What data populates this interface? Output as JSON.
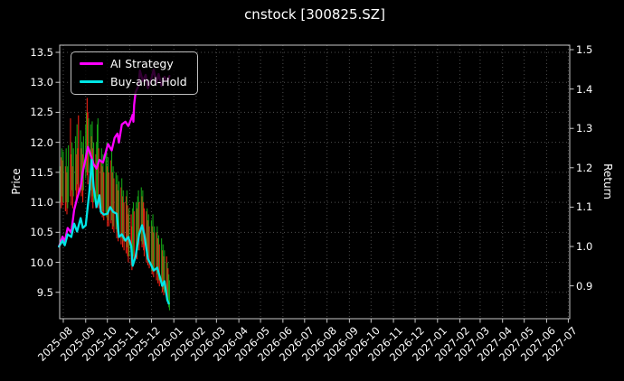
{
  "title": "cnstock [300825.SZ]",
  "left_axis_label": "Price",
  "right_axis_label": "Return",
  "legend": {
    "items": [
      {
        "label": "AI Strategy",
        "color": "#ff00ff"
      },
      {
        "label": "Buy-and-Hold",
        "color": "#00e5e5"
      }
    ]
  },
  "colors": {
    "background": "#000000",
    "text": "#ffffff",
    "plot_border": "#c8c8c8",
    "grid": "#4d4d4d",
    "ai_strategy": "#ff00ff",
    "buy_and_hold": "#00e5e5",
    "candle_up": "#15a015",
    "candle_down": "#ec2115"
  },
  "chart_data": {
    "type": "line",
    "subtypes": [
      "ohlc-range-bars",
      "line",
      "line"
    ],
    "title": "cnstock [300825.SZ]",
    "xlabel": "",
    "grid": {
      "visible": true,
      "style": "dotted"
    },
    "legend_position": "upper-left",
    "x_axis": {
      "epoch": "2025-08-01",
      "range_days": [
        -5,
        701
      ],
      "tick_labels": [
        "2025-08",
        "2025-09",
        "2025-10",
        "2025-11",
        "2025-12",
        "2026-01",
        "2026-02",
        "2026-03",
        "2026-04",
        "2026-05",
        "2026-06",
        "2026-07",
        "2026-08",
        "2026-09",
        "2026-10",
        "2026-11",
        "2026-12",
        "2027-01",
        "2027-02",
        "2027-03",
        "2027-04",
        "2027-05",
        "2027-06",
        "2027-07"
      ],
      "tick_day_offsets": [
        0,
        31,
        61,
        92,
        122,
        153,
        184,
        212,
        243,
        273,
        304,
        334,
        365,
        396,
        426,
        457,
        487,
        518,
        549,
        577,
        608,
        638,
        669,
        699
      ],
      "label_rotation_deg": 45
    },
    "left_axis": {
      "label": "Price",
      "ticks": [
        9.5,
        10.0,
        10.5,
        11.0,
        11.5,
        12.0,
        12.5,
        13.0,
        13.5
      ],
      "range": [
        9.06,
        13.62
      ]
    },
    "right_axis": {
      "label": "Return",
      "ticks": [
        0.9,
        1.0,
        1.1,
        1.2,
        1.3,
        1.4,
        1.5
      ],
      "range": [
        0.8165,
        1.5115
      ]
    },
    "series": [
      {
        "name": "AI Strategy",
        "axis": "right",
        "color": "#ff00ff",
        "points": [
          [
            -6,
            1.0
          ],
          [
            -1,
            1.025
          ],
          [
            2,
            1.012
          ],
          [
            6,
            1.047
          ],
          [
            11,
            1.035
          ],
          [
            15,
            1.093
          ],
          [
            19,
            1.122
          ],
          [
            24,
            1.152
          ],
          [
            27,
            1.19
          ],
          [
            31,
            1.225
          ],
          [
            34,
            1.253
          ],
          [
            37,
            1.237
          ],
          [
            42,
            1.209
          ],
          [
            46,
            1.198
          ],
          [
            50,
            1.22
          ],
          [
            55,
            1.213
          ],
          [
            59,
            1.241
          ],
          [
            62,
            1.26
          ],
          [
            67,
            1.244
          ],
          [
            71,
            1.276
          ],
          [
            75,
            1.287
          ],
          [
            77,
            1.264
          ],
          [
            81,
            1.31
          ],
          [
            86,
            1.317
          ],
          [
            90,
            1.306
          ],
          [
            94,
            1.324
          ],
          [
            96,
            1.335
          ],
          [
            97,
            1.317
          ],
          [
            98,
            1.36
          ],
          [
            100,
            1.392
          ],
          [
            104,
            1.408
          ],
          [
            106,
            1.447
          ],
          [
            110,
            1.42
          ],
          [
            114,
            1.436
          ],
          [
            117,
            1.402
          ],
          [
            121,
            1.42
          ],
          [
            125,
            1.449
          ],
          [
            129,
            1.415
          ],
          [
            132,
            1.438
          ],
          [
            136,
            1.408
          ],
          [
            140,
            1.431
          ],
          [
            144,
            1.42
          ],
          [
            147,
            1.433
          ]
        ]
      },
      {
        "name": "Buy-and-Hold",
        "axis": "right",
        "color": "#00e5e5",
        "points": [
          [
            -6,
            1.0
          ],
          [
            -1,
            1.015
          ],
          [
            2,
            1.003
          ],
          [
            6,
            1.031
          ],
          [
            11,
            1.024
          ],
          [
            15,
            1.058
          ],
          [
            19,
            1.038
          ],
          [
            24,
            1.072
          ],
          [
            27,
            1.047
          ],
          [
            31,
            1.054
          ],
          [
            36,
            1.139
          ],
          [
            39,
            1.22
          ],
          [
            42,
            1.152
          ],
          [
            46,
            1.1
          ],
          [
            50,
            1.13
          ],
          [
            52,
            1.088
          ],
          [
            56,
            1.081
          ],
          [
            61,
            1.083
          ],
          [
            65,
            1.1
          ],
          [
            69,
            1.088
          ],
          [
            74,
            1.083
          ],
          [
            77,
            1.024
          ],
          [
            81,
            1.031
          ],
          [
            86,
            1.015
          ],
          [
            90,
            1.024
          ],
          [
            94,
            1.001
          ],
          [
            96,
            0.951
          ],
          [
            100,
            0.974
          ],
          [
            105,
            1.031
          ],
          [
            109,
            1.054
          ],
          [
            112,
            1.031
          ],
          [
            117,
            0.969
          ],
          [
            121,
            0.955
          ],
          [
            125,
            0.939
          ],
          [
            130,
            0.946
          ],
          [
            134,
            0.921
          ],
          [
            137,
            0.9
          ],
          [
            140,
            0.912
          ],
          [
            144,
            0.864
          ],
          [
            146,
            0.855
          ]
        ]
      }
    ],
    "candles": {
      "axis": "left",
      "up_color": "#15a015",
      "down_color": "#ec2115",
      "bars": [
        [
          -4,
          11.0,
          11.6,
          "u"
        ],
        [
          -3,
          10.9,
          11.75,
          "d"
        ],
        [
          -2,
          11.1,
          11.9,
          "u"
        ],
        [
          -1,
          10.95,
          11.7,
          "d"
        ],
        [
          0,
          11.0,
          11.85,
          "u"
        ],
        [
          3,
          10.85,
          11.6,
          "d"
        ],
        [
          4,
          11.0,
          11.9,
          "u"
        ],
        [
          5,
          10.8,
          11.5,
          "d"
        ],
        [
          6,
          10.9,
          11.6,
          "u"
        ],
        [
          7,
          11.0,
          11.95,
          "u"
        ],
        [
          10,
          11.1,
          12.4,
          "d"
        ],
        [
          11,
          10.95,
          11.8,
          "d"
        ],
        [
          12,
          11.2,
          12.0,
          "u"
        ],
        [
          13,
          10.9,
          11.6,
          "d"
        ],
        [
          14,
          11.1,
          11.9,
          "u"
        ],
        [
          17,
          11.2,
          12.1,
          "u"
        ],
        [
          18,
          11.0,
          11.8,
          "d"
        ],
        [
          19,
          11.3,
          12.3,
          "u"
        ],
        [
          20,
          11.1,
          11.9,
          "d"
        ],
        [
          21,
          11.15,
          12.45,
          "d"
        ],
        [
          24,
          11.3,
          12.2,
          "u"
        ],
        [
          25,
          11.1,
          11.9,
          "d"
        ],
        [
          26,
          11.2,
          12.0,
          "u"
        ],
        [
          27,
          11.0,
          11.8,
          "d"
        ],
        [
          28,
          11.2,
          12.1,
          "u"
        ],
        [
          31,
          11.4,
          12.3,
          "u"
        ],
        [
          32,
          11.5,
          12.5,
          "u"
        ],
        [
          33,
          11.45,
          12.74,
          "d"
        ],
        [
          34,
          11.3,
          12.5,
          "d"
        ],
        [
          35,
          11.5,
          12.4,
          "u"
        ],
        [
          38,
          11.2,
          12.3,
          "u"
        ],
        [
          39,
          11.0,
          12.1,
          "d"
        ],
        [
          40,
          11.1,
          12.35,
          "u"
        ],
        [
          41,
          10.9,
          11.9,
          "d"
        ],
        [
          42,
          11.0,
          12.0,
          "u"
        ],
        [
          45,
          10.9,
          11.8,
          "d"
        ],
        [
          46,
          11.0,
          12.0,
          "u"
        ],
        [
          47,
          11.1,
          12.3,
          "u"
        ],
        [
          48,
          11.05,
          12.4,
          "u"
        ],
        [
          49,
          10.9,
          11.9,
          "d"
        ],
        [
          52,
          10.8,
          11.7,
          "d"
        ],
        [
          53,
          10.9,
          11.9,
          "u"
        ],
        [
          54,
          10.75,
          11.6,
          "d"
        ],
        [
          55,
          10.85,
          11.8,
          "u"
        ],
        [
          56,
          10.7,
          11.5,
          "d"
        ],
        [
          59,
          10.8,
          11.9,
          "u"
        ],
        [
          60,
          10.75,
          12.0,
          "u"
        ],
        [
          61,
          10.6,
          11.6,
          "d"
        ],
        [
          62,
          10.7,
          11.75,
          "u"
        ],
        [
          63,
          10.6,
          11.5,
          "d"
        ],
        [
          66,
          10.65,
          11.7,
          "d"
        ],
        [
          67,
          10.7,
          11.85,
          "u"
        ],
        [
          68,
          10.55,
          11.5,
          "d"
        ],
        [
          69,
          10.6,
          11.6,
          "u"
        ],
        [
          70,
          10.5,
          11.4,
          "d"
        ],
        [
          73,
          10.55,
          11.5,
          "u"
        ],
        [
          74,
          10.4,
          11.3,
          "d"
        ],
        [
          75,
          10.5,
          11.45,
          "u"
        ],
        [
          76,
          10.35,
          11.2,
          "d"
        ],
        [
          77,
          10.45,
          11.35,
          "u"
        ],
        [
          80,
          10.3,
          11.25,
          "d"
        ],
        [
          81,
          10.4,
          11.4,
          "u"
        ],
        [
          82,
          10.25,
          11.1,
          "d"
        ],
        [
          83,
          10.35,
          11.2,
          "u"
        ],
        [
          84,
          10.2,
          11.0,
          "d"
        ],
        [
          87,
          10.15,
          11.1,
          "d"
        ],
        [
          88,
          10.25,
          11.2,
          "u"
        ],
        [
          89,
          10.1,
          10.95,
          "d"
        ],
        [
          90,
          10.0,
          10.8,
          "d"
        ],
        [
          91,
          10.1,
          10.9,
          "u"
        ],
        [
          94,
          9.95,
          10.8,
          "d"
        ],
        [
          95,
          9.87,
          10.6,
          "d"
        ],
        [
          96,
          10.0,
          10.9,
          "u"
        ],
        [
          97,
          10.1,
          11.0,
          "u"
        ],
        [
          98,
          10.0,
          10.85,
          "d"
        ],
        [
          101,
          10.15,
          11.0,
          "u"
        ],
        [
          102,
          10.05,
          10.9,
          "d"
        ],
        [
          103,
          10.2,
          11.1,
          "u"
        ],
        [
          104,
          10.3,
          11.2,
          "u"
        ],
        [
          105,
          10.2,
          11.0,
          "d"
        ],
        [
          108,
          10.35,
          11.25,
          "u"
        ],
        [
          109,
          10.25,
          11.1,
          "d"
        ],
        [
          110,
          10.3,
          11.2,
          "u"
        ],
        [
          111,
          10.2,
          11.0,
          "d"
        ],
        [
          112,
          10.1,
          10.9,
          "d"
        ],
        [
          115,
          10.0,
          10.85,
          "d"
        ],
        [
          116,
          10.1,
          10.9,
          "u"
        ],
        [
          117,
          9.95,
          10.7,
          "d"
        ],
        [
          118,
          10.0,
          10.8,
          "u"
        ],
        [
          119,
          9.9,
          10.6,
          "d"
        ],
        [
          122,
          9.85,
          10.7,
          "u"
        ],
        [
          123,
          9.8,
          10.6,
          "d"
        ],
        [
          124,
          9.9,
          10.8,
          "u"
        ],
        [
          125,
          9.75,
          10.5,
          "d"
        ],
        [
          126,
          9.85,
          10.6,
          "u"
        ],
        [
          129,
          9.7,
          10.5,
          "d"
        ],
        [
          130,
          9.8,
          10.6,
          "u"
        ],
        [
          131,
          9.65,
          10.4,
          "d"
        ],
        [
          132,
          9.7,
          10.45,
          "u"
        ],
        [
          133,
          9.6,
          10.3,
          "d"
        ],
        [
          136,
          9.6,
          10.4,
          "u"
        ],
        [
          137,
          9.5,
          10.2,
          "d"
        ],
        [
          138,
          9.55,
          10.3,
          "u"
        ],
        [
          139,
          9.45,
          10.1,
          "d"
        ],
        [
          140,
          9.5,
          10.2,
          "u"
        ],
        [
          143,
          9.4,
          10.1,
          "d"
        ],
        [
          144,
          9.35,
          10.0,
          "u"
        ],
        [
          145,
          9.3,
          9.9,
          "d"
        ],
        [
          146,
          9.25,
          9.8,
          "u"
        ],
        [
          147,
          9.2,
          9.7,
          "u"
        ]
      ]
    }
  }
}
